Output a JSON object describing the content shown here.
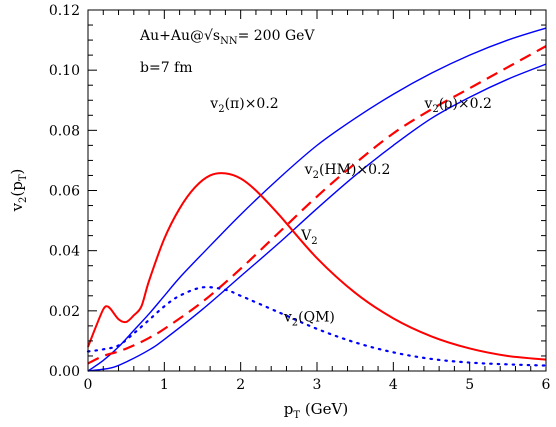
{
  "chart_data": {
    "type": "line",
    "xlabel": "p_T (GeV)",
    "ylabel": "v_2(p_T)",
    "xlim": [
      0,
      6
    ],
    "ylim": [
      0,
      0.12
    ],
    "x_ticks": [
      "0",
      "1",
      "2",
      "3",
      "4",
      "5",
      "6"
    ],
    "y_ticks": [
      "0.00",
      "0.02",
      "0.04",
      "0.06",
      "0.08",
      "0.10",
      "0.12"
    ],
    "grid": false,
    "annotations": {
      "system": "Au+Au@√s_NN= 200 GeV",
      "impact": "b=7 fm"
    },
    "series": [
      {
        "name": "v_2(π)×0.2",
        "color": "#0000ff",
        "style": "solid",
        "x": [
          0,
          0.2,
          0.4,
          0.6,
          0.8,
          1.0,
          1.2,
          1.5,
          2.0,
          2.5,
          3.0,
          3.5,
          4.0,
          4.5,
          5.0,
          5.5,
          6.0
        ],
        "y": [
          0,
          0.0035,
          0.008,
          0.0135,
          0.019,
          0.025,
          0.031,
          0.039,
          0.052,
          0.064,
          0.075,
          0.084,
          0.092,
          0.099,
          0.105,
          0.11,
          0.114
        ]
      },
      {
        "name": "v_2(ρ)×0.2",
        "color": "#0000ff",
        "style": "solid",
        "x": [
          0,
          0.3,
          0.5,
          0.8,
          1.0,
          1.5,
          2.0,
          2.5,
          3.0,
          3.5,
          4.0,
          4.5,
          5.0,
          5.5,
          6.0
        ],
        "y": [
          0,
          0.001,
          0.003,
          0.007,
          0.0105,
          0.0205,
          0.0315,
          0.0425,
          0.054,
          0.065,
          0.075,
          0.084,
          0.091,
          0.097,
          0.102
        ]
      },
      {
        "name": "v_2(HM)×0.2",
        "color": "#ff0000",
        "style": "dashed",
        "x": [
          0,
          0.2,
          0.4,
          0.6,
          0.8,
          1.0,
          1.5,
          2.0,
          2.5,
          3.0,
          3.5,
          4.0,
          4.5,
          5.0,
          5.5,
          6.0
        ],
        "y": [
          0.0025,
          0.005,
          0.0065,
          0.0085,
          0.011,
          0.014,
          0.023,
          0.034,
          0.046,
          0.058,
          0.069,
          0.079,
          0.087,
          0.094,
          0.101,
          0.108
        ]
      },
      {
        "name": "v_2",
        "color": "#ff0000",
        "style": "solid",
        "x": [
          0,
          0.1,
          0.2,
          0.25,
          0.3,
          0.4,
          0.5,
          0.6,
          0.7,
          0.8,
          1.0,
          1.2,
          1.4,
          1.6,
          1.8,
          2.0,
          2.2,
          2.5,
          3.0,
          3.5,
          4.0,
          4.5,
          5.0,
          5.5,
          6.0
        ],
        "y": [
          0.008,
          0.0145,
          0.0205,
          0.0215,
          0.0205,
          0.0172,
          0.0163,
          0.0185,
          0.0215,
          0.03,
          0.044,
          0.054,
          0.061,
          0.065,
          0.0657,
          0.064,
          0.06,
          0.052,
          0.0375,
          0.026,
          0.0175,
          0.0115,
          0.0075,
          0.005,
          0.0038
        ]
      },
      {
        "name": "v_2(QM)",
        "color": "#0000ff",
        "style": "dotted",
        "x": [
          0,
          0.2,
          0.4,
          0.6,
          0.8,
          1.0,
          1.2,
          1.5,
          1.8,
          2.0,
          2.5,
          3.0,
          3.5,
          4.0,
          4.5,
          5.0,
          5.5,
          6.0
        ],
        "y": [
          0.0065,
          0.0072,
          0.0085,
          0.0125,
          0.017,
          0.0215,
          0.025,
          0.0278,
          0.027,
          0.025,
          0.0195,
          0.014,
          0.0095,
          0.0062,
          0.004,
          0.0028,
          0.0022,
          0.0018
        ]
      }
    ],
    "labels": [
      {
        "text": "v_2(π)×0.2",
        "x": 2.05,
        "y": 0.0875
      },
      {
        "text": "v_2(ρ)×0.2",
        "x": 4.85,
        "y": 0.0875
      },
      {
        "text": "v_2(HM)×0.2",
        "x": 3.4,
        "y": 0.0655
      },
      {
        "text": "V_2",
        "x": 2.9,
        "y": 0.0435
      },
      {
        "text": "v_2(QM)",
        "x": 2.9,
        "y": 0.0165
      }
    ]
  }
}
